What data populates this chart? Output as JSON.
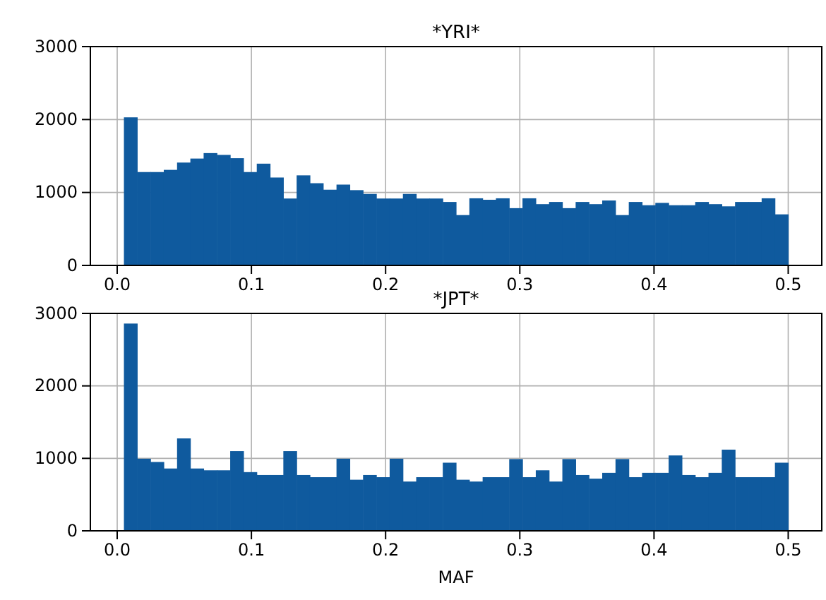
{
  "chart_data": [
    {
      "type": "histogram",
      "title": "*YRI*",
      "color": "#0f5a9e",
      "grid": true,
      "bins": [
        0.005,
        0.0149,
        0.0248,
        0.0347,
        0.0446,
        0.0545,
        0.0644,
        0.0743,
        0.0842,
        0.0941,
        0.104,
        0.1139,
        0.1238,
        0.1337,
        0.1436,
        0.1535,
        0.1634,
        0.1733,
        0.1832,
        0.1931,
        0.203,
        0.2129,
        0.2228,
        0.2327,
        0.2426,
        0.2525,
        0.2624,
        0.2723,
        0.2822,
        0.2921,
        0.302,
        0.3119,
        0.3218,
        0.3317,
        0.3416,
        0.3515,
        0.3614,
        0.3713,
        0.3812,
        0.3911,
        0.401,
        0.4109,
        0.4208,
        0.4307,
        0.4406,
        0.4505,
        0.4604,
        0.4703,
        0.4802,
        0.4901,
        0.5
      ],
      "values": [
        2030,
        1280,
        1280,
        1310,
        1410,
        1465,
        1540,
        1515,
        1470,
        1280,
        1395,
        1205,
        917,
        1235,
        1127,
        1038,
        1108,
        1032,
        980,
        917,
        917,
        980,
        917,
        917,
        870,
        690,
        920,
        900,
        920,
        785,
        920,
        840,
        870,
        785,
        870,
        840,
        890,
        690,
        870,
        825,
        857,
        825,
        825,
        870,
        840,
        810,
        870,
        870,
        920,
        700
      ],
      "xlim": [
        -0.02,
        0.525
      ],
      "xticks": [
        {
          "value": 0,
          "label": "0.0"
        },
        0.1,
        0.2,
        0.3,
        0.4,
        0.5
      ],
      "ylim": [
        0,
        3000
      ],
      "yticks": [
        0,
        1000,
        2000,
        3000
      ]
    },
    {
      "type": "histogram",
      "title": "*JPT*",
      "xlabel": "MAF",
      "color": "#0f5a9e",
      "grid": true,
      "bins": [
        0.005,
        0.0149,
        0.0248,
        0.0347,
        0.0446,
        0.0545,
        0.0644,
        0.0743,
        0.0842,
        0.0941,
        0.104,
        0.1139,
        0.1238,
        0.1337,
        0.1436,
        0.1535,
        0.1634,
        0.1733,
        0.1832,
        0.1931,
        0.203,
        0.2129,
        0.2228,
        0.2327,
        0.2426,
        0.2525,
        0.2624,
        0.2723,
        0.2822,
        0.2921,
        0.302,
        0.3119,
        0.3218,
        0.3317,
        0.3416,
        0.3515,
        0.3614,
        0.3713,
        0.3812,
        0.3911,
        0.401,
        0.4109,
        0.4208,
        0.4307,
        0.4406,
        0.4505,
        0.4604,
        0.4703,
        0.4802,
        0.4901,
        0.5
      ],
      "values": [
        2860,
        995,
        950,
        860,
        1275,
        860,
        835,
        835,
        1100,
        810,
        770,
        770,
        1100,
        770,
        740,
        740,
        995,
        705,
        770,
        740,
        995,
        680,
        740,
        740,
        940,
        705,
        680,
        740,
        740,
        990,
        740,
        835,
        680,
        990,
        770,
        720,
        800,
        990,
        740,
        800,
        800,
        1040,
        770,
        740,
        800,
        1120,
        740,
        740,
        740,
        940
      ],
      "xlim": [
        -0.02,
        0.525
      ],
      "xticks": [
        {
          "value": 0,
          "label": "0.0"
        },
        0.1,
        0.2,
        0.3,
        0.4,
        0.5
      ],
      "ylim": [
        0,
        3000
      ],
      "yticks": [
        0,
        1000,
        2000,
        3000
      ]
    }
  ]
}
